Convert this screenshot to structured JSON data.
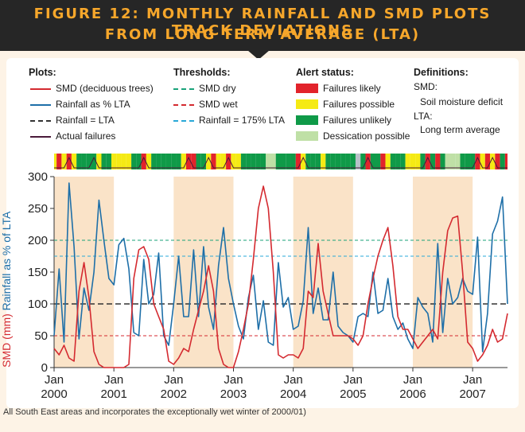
{
  "figure": {
    "title_line1": "FIGURE 12: MONTHLY RAINFALL AND SMD PLOTS TRACK DEVIATIONS",
    "title_line2": "FROM LONG TERM AVERAGE (LTA)"
  },
  "legend": {
    "plots": {
      "heading": "Plots:",
      "items": [
        {
          "label": "SMD (deciduous trees)",
          "color": "#d42a30",
          "style": "solid"
        },
        {
          "label": "Rainfall as % LTA",
          "color": "#1e6fa8",
          "style": "solid"
        },
        {
          "label": "Rainfall = LTA",
          "color": "#333333",
          "style": "dashed"
        },
        {
          "label": "Actual failures",
          "color": "#4a1a3a",
          "style": "solid"
        }
      ]
    },
    "thresholds": {
      "heading": "Thresholds:",
      "items": [
        {
          "label": "SMD dry",
          "color": "#1aa37a",
          "style": "dashed"
        },
        {
          "label": "SMD wet",
          "color": "#d42a30",
          "style": "dashed"
        },
        {
          "label": "Rainfall = 175% LTA",
          "color": "#29a8d8",
          "style": "dashed"
        }
      ]
    },
    "alerts": {
      "heading": "Alert status:",
      "items": [
        {
          "label": "Failures likely",
          "color": "#e2232b"
        },
        {
          "label": "Failures possible",
          "color": "#f5ea14"
        },
        {
          "label": "Failures unlikely",
          "color": "#0f9a48"
        },
        {
          "label": "Dessication possible",
          "color": "#bfe0a6"
        }
      ]
    },
    "definitions": {
      "heading": "Definitions:",
      "smd_term": "SMD:",
      "smd_def": "Soil moisture deficit",
      "lta_term": "LTA:",
      "lta_def": "Long term average"
    }
  },
  "caption": "All South East areas and incorporates the exceptionally wet winter of 2000/01)",
  "chart_data": {
    "type": "line",
    "title": "Monthly rainfall and SMD plots track deviations from long term average (LTA)",
    "ylabel_rain": "Rainfall as % of LTA",
    "ylabel_smd": "SMD (mm)",
    "ylim": [
      0,
      300
    ],
    "yticks": [
      0,
      50,
      100,
      150,
      200,
      250,
      300
    ],
    "x_start": "Jan 2000",
    "x_end": "Sep 2007",
    "xticks": [
      {
        "month": 0,
        "line1": "Jan",
        "line2": "2000"
      },
      {
        "month": 12,
        "line1": "Jan",
        "line2": "2001"
      },
      {
        "month": 24,
        "line1": "Jan",
        "line2": "2002"
      },
      {
        "month": 36,
        "line1": "Jan",
        "line2": "2003"
      },
      {
        "month": 48,
        "line1": "Jan",
        "line2": "2004"
      },
      {
        "month": 60,
        "line1": "Jan",
        "line2": "2005"
      },
      {
        "month": 72,
        "line1": "Jan",
        "line2": "2006"
      },
      {
        "month": 84,
        "line1": "Jan",
        "line2": "2007"
      }
    ],
    "summer_shading": [
      [
        0,
        12
      ],
      [
        24,
        36
      ],
      [
        48,
        60
      ],
      [
        72,
        84
      ]
    ],
    "shading_color": "#fae3c8",
    "thresholds": [
      {
        "name": "SMD dry",
        "value": 200,
        "color": "#1aa37a"
      },
      {
        "name": "Rainfall = 175% LTA",
        "value": 175,
        "color": "#29a8d8"
      },
      {
        "name": "Rainfall = LTA",
        "value": 100,
        "color": "#333333"
      },
      {
        "name": "SMD wet",
        "value": 50,
        "color": "#d42a30"
      }
    ],
    "series": [
      {
        "name": "SMD (deciduous trees)",
        "color": "#d42a30",
        "values": [
          30,
          20,
          35,
          15,
          10,
          120,
          165,
          110,
          25,
          5,
          0,
          0,
          0,
          0,
          0,
          5,
          140,
          185,
          190,
          170,
          100,
          80,
          60,
          10,
          5,
          15,
          30,
          25,
          60,
          90,
          120,
          160,
          120,
          30,
          5,
          0,
          0,
          25,
          60,
          100,
          170,
          250,
          285,
          250,
          150,
          20,
          15,
          20,
          20,
          15,
          30,
          120,
          110,
          195,
          120,
          85,
          50,
          50,
          50,
          50,
          45,
          35,
          50,
          100,
          140,
          175,
          200,
          220,
          160,
          80,
          60,
          60,
          45,
          30,
          40,
          50,
          60,
          45,
          150,
          215,
          235,
          238,
          150,
          40,
          30,
          10,
          20,
          35,
          60,
          40,
          45,
          85
        ]
      },
      {
        "name": "Rainfall as % LTA",
        "color": "#1e6fa8",
        "values": [
          50,
          155,
          40,
          290,
          190,
          45,
          125,
          90,
          150,
          263,
          200,
          140,
          130,
          193,
          203,
          155,
          55,
          50,
          170,
          100,
          115,
          180,
          50,
          35,
          100,
          175,
          80,
          80,
          185,
          80,
          190,
          95,
          60,
          160,
          220,
          140,
          100,
          65,
          45,
          110,
          145,
          60,
          105,
          40,
          35,
          165,
          95,
          110,
          60,
          65,
          105,
          220,
          85,
          125,
          75,
          75,
          150,
          65,
          55,
          50,
          40,
          80,
          85,
          80,
          150,
          85,
          90,
          140,
          80,
          60,
          70,
          45,
          30,
          110,
          95,
          85,
          40,
          195,
          55,
          140,
          100,
          110,
          140,
          120,
          115,
          205,
          25,
          85,
          210,
          230,
          268,
          100
        ]
      }
    ],
    "alert_status": [
      "F",
      "L",
      "P",
      "L",
      "P",
      "U",
      "U",
      "U",
      "U",
      "P",
      "U",
      "U",
      "P",
      "P",
      "P",
      "P",
      "U",
      "U",
      "L",
      "P",
      "U",
      "U",
      "U",
      "U",
      "U",
      "U",
      "P",
      "L",
      "L",
      "U",
      "U",
      "P",
      "L",
      "P",
      "P",
      "L",
      "P",
      "P",
      "U",
      "U",
      "U",
      "U",
      "U",
      "D",
      "D",
      "U",
      "U",
      "U",
      "U",
      "L",
      "P",
      "U",
      "U",
      "U",
      "P",
      "U",
      "U",
      "U",
      "U",
      "U",
      "U",
      "G",
      "U",
      "L",
      "U",
      "U",
      "L",
      "P",
      "U",
      "U",
      "U",
      "P",
      "P",
      "P",
      "U",
      "L",
      "U",
      "L",
      "U",
      "D",
      "D",
      "D",
      "U",
      "U",
      "U",
      "L",
      "P",
      "L",
      "P",
      "L",
      "U",
      "L"
    ],
    "alert_colors": {
      "L": "#e2232b",
      "P": "#f5ea14",
      "U": "#0f9a48",
      "D": "#bfe0a6",
      "G": "#b8c2c8",
      "F": "#f5ea14"
    }
  }
}
